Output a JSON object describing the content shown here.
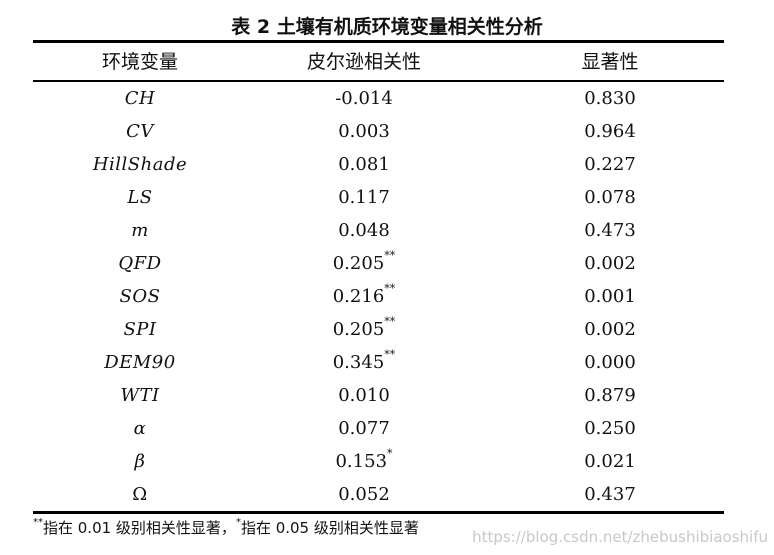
{
  "title": "表 2  土壤有机质环境变量相关性分析",
  "headers": {
    "variable": "环境变量",
    "pearson": "皮尔逊相关性",
    "significance": "显著性"
  },
  "rows": [
    {
      "variable": "CH",
      "pearson": "-0.014",
      "mark": "",
      "significance": "0.830"
    },
    {
      "variable": "CV",
      "pearson": "0.003",
      "mark": "",
      "significance": "0.964"
    },
    {
      "variable": "HillShade",
      "pearson": "0.081",
      "mark": "",
      "significance": "0.227"
    },
    {
      "variable": "LS",
      "pearson": "0.117",
      "mark": "",
      "significance": "0.078"
    },
    {
      "variable": "m",
      "pearson": "0.048",
      "mark": "",
      "significance": "0.473"
    },
    {
      "variable": "QFD",
      "pearson": "0.205",
      "mark": "**",
      "significance": "0.002"
    },
    {
      "variable": "SOS",
      "pearson": "0.216",
      "mark": "**",
      "significance": "0.001"
    },
    {
      "variable": "SPI",
      "pearson": "0.205",
      "mark": "**",
      "significance": "0.002"
    },
    {
      "variable": "DEM90",
      "pearson": "0.345",
      "mark": "**",
      "significance": "0.000"
    },
    {
      "variable": "WTI",
      "pearson": "0.010",
      "mark": "",
      "significance": "0.879"
    },
    {
      "variable": "α",
      "pearson": "0.077",
      "mark": "",
      "significance": "0.250"
    },
    {
      "variable": "β",
      "pearson": "0.153",
      "mark": "*",
      "significance": "0.021"
    },
    {
      "variable": "Ω",
      "pearson": "0.052",
      "mark": "",
      "significance": "0.437",
      "upright": true
    }
  ],
  "footnote": {
    "mark1": "**",
    "text1": "指在 0.01 级别相关性显著，",
    "mark2": "*",
    "text2": "指在 0.05 级别相关性显著"
  },
  "watermark": "https://blog.csdn.net/zhebushibiaoshifu"
}
